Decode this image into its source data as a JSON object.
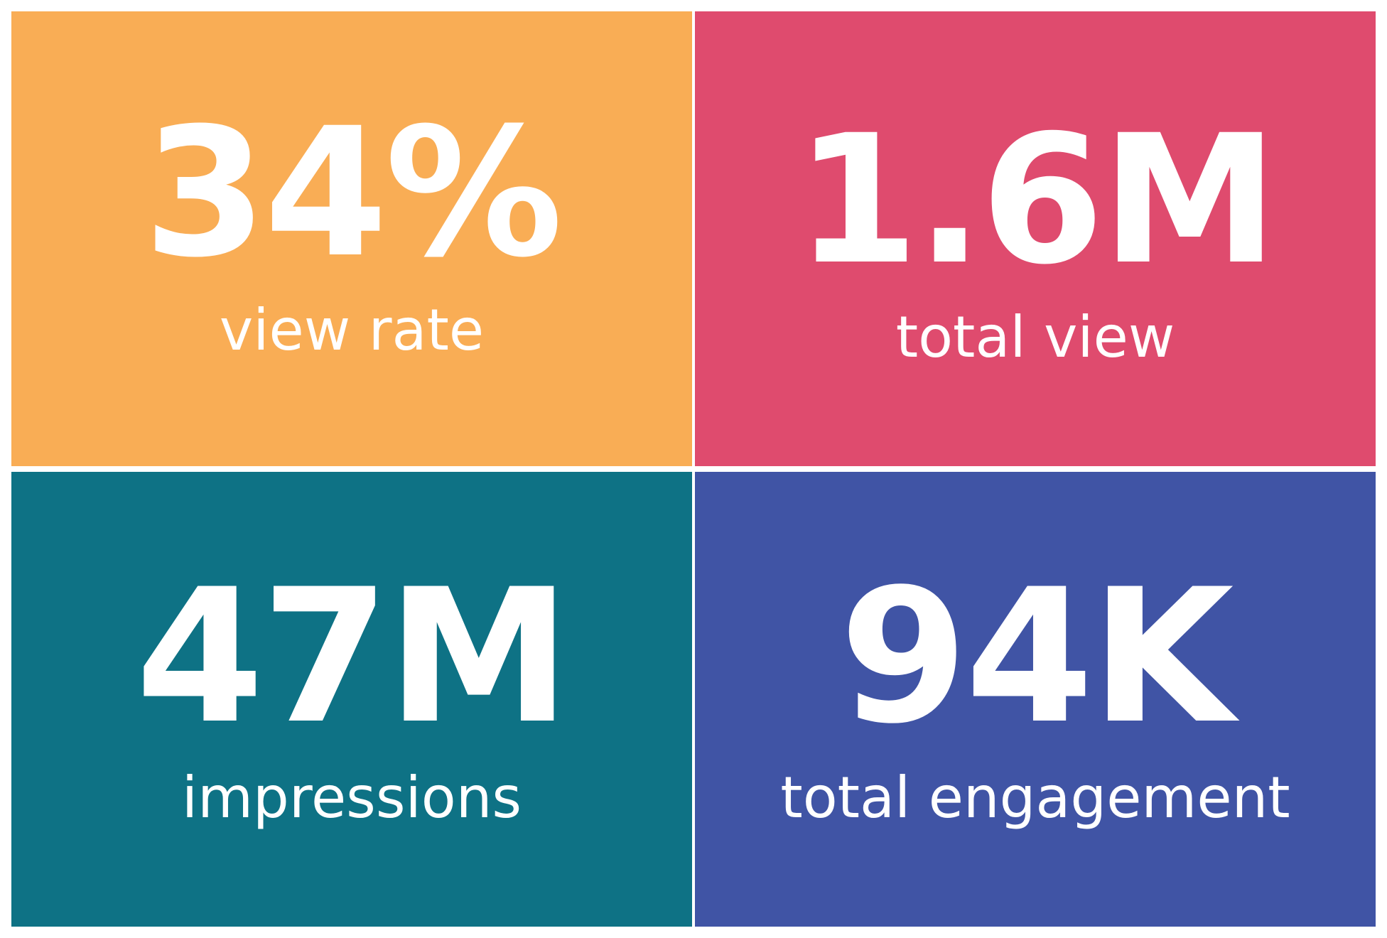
{
  "tiles": [
    {
      "value": "34%",
      "label": "view rate",
      "color": "#F9AD55"
    },
    {
      "value": "1.6M",
      "label": "total view",
      "color": "#DF4B6E"
    },
    {
      "value": "47M",
      "label": "impressions",
      "color": "#0E7285"
    },
    {
      "value": "94K",
      "label": "total engagement",
      "color": "#4054A5"
    }
  ]
}
